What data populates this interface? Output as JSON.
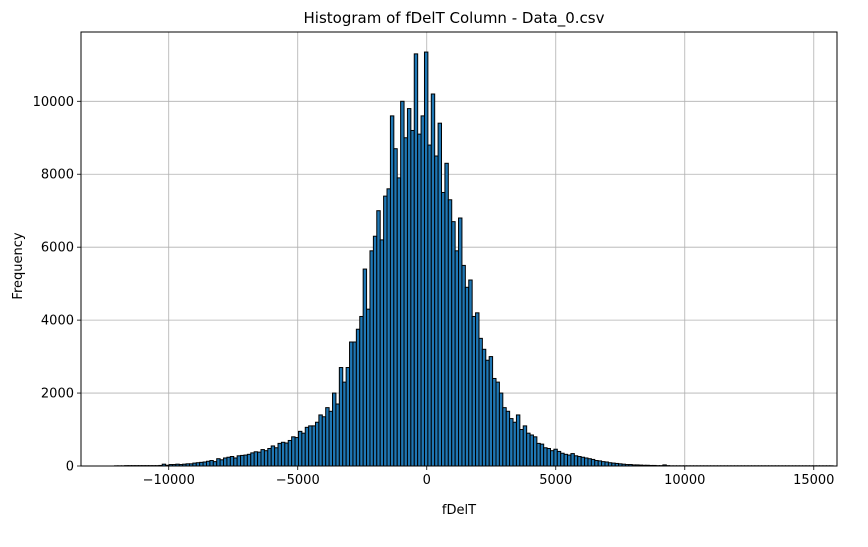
{
  "chart_data": {
    "type": "bar",
    "title": "Histogram of fDelT Column - Data_0.csv",
    "xlabel": "fDelT",
    "ylabel": "Frequency",
    "xlim": [
      -13400,
      15900
    ],
    "ylim": [
      0,
      11900
    ],
    "xticks": [
      -10000,
      -5000,
      0,
      5000,
      10000,
      15000
    ],
    "xtick_labels": [
      "−10000",
      "−5000",
      "0",
      "5000",
      "10000",
      "15000"
    ],
    "yticks": [
      0,
      2000,
      4000,
      6000,
      8000,
      10000
    ],
    "ytick_labels": [
      "0",
      "2000",
      "4000",
      "6000",
      "8000",
      "10000"
    ],
    "grid": true,
    "bar_color": "#1f77b4",
    "edge_color": "#000000",
    "bin_start": -12100,
    "bin_width": 132,
    "values": [
      5,
      5,
      5,
      10,
      10,
      10,
      10,
      10,
      10,
      10,
      10,
      10,
      10,
      15,
      50,
      20,
      40,
      40,
      50,
      40,
      50,
      60,
      60,
      80,
      90,
      100,
      110,
      130,
      150,
      120,
      200,
      170,
      220,
      240,
      260,
      220,
      280,
      290,
      300,
      320,
      360,
      390,
      380,
      450,
      420,
      480,
      550,
      500,
      620,
      650,
      630,
      700,
      800,
      780,
      950,
      900,
      1060,
      1100,
      1100,
      1200,
      1400,
      1350,
      1600,
      1500,
      2000,
      1700,
      2700,
      2300,
      2700,
      3400,
      3400,
      3750,
      4100,
      5400,
      4300,
      5900,
      6300,
      7000,
      6200,
      7400,
      7600,
      9600,
      8700,
      7900,
      10000,
      9000,
      9800,
      9200,
      11300,
      9100,
      9600,
      11350,
      8800,
      10200,
      8500,
      9400,
      7500,
      8300,
      7300,
      6700,
      5900,
      6800,
      5500,
      4900,
      5100,
      4100,
      4200,
      3500,
      3200,
      2900,
      3000,
      2400,
      2300,
      2000,
      1600,
      1500,
      1300,
      1200,
      1400,
      1000,
      1100,
      900,
      850,
      800,
      620,
      600,
      500,
      480,
      420,
      460,
      400,
      350,
      320,
      300,
      340,
      280,
      260,
      240,
      220,
      200,
      180,
      150,
      140,
      120,
      110,
      90,
      80,
      70,
      60,
      50,
      40,
      40,
      30,
      30,
      25,
      20,
      20,
      15,
      15,
      10,
      10,
      30,
      10,
      5,
      5,
      5,
      5,
      5,
      5,
      5,
      5,
      5,
      5,
      5,
      5,
      5,
      5,
      5,
      5,
      5,
      5,
      5,
      5,
      5,
      5,
      5,
      5,
      5,
      5,
      5,
      5,
      5,
      5,
      5,
      5,
      5,
      5,
      5,
      5,
      5,
      5,
      5,
      5,
      5,
      5,
      5,
      5,
      5,
      5,
      5,
      5
    ]
  }
}
